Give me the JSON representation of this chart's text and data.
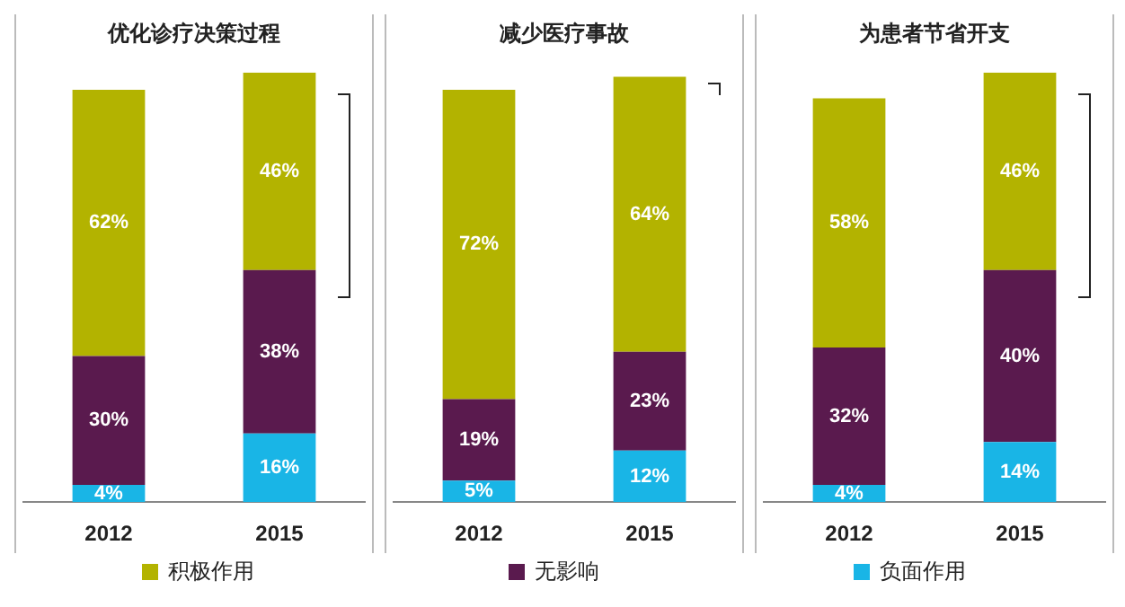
{
  "chart_data": [
    {
      "type": "bar",
      "title": "优化诊疗决策过程",
      "categories": [
        "2012",
        "2015"
      ],
      "stacked": true,
      "legend": "bottom",
      "series": [
        {
          "name": "负面作用",
          "color": "#19b5e6",
          "values": [
            4,
            16
          ],
          "value_labels": [
            "4%",
            "16%"
          ]
        },
        {
          "name": "无影响",
          "color": "#5a1a4e",
          "values": [
            30,
            38
          ],
          "value_labels": [
            "30%",
            "38%"
          ]
        },
        {
          "name": "积极作用",
          "color": "#b3b300",
          "values": [
            62,
            46
          ],
          "value_labels": [
            "62%",
            "46%"
          ]
        }
      ]
    },
    {
      "type": "bar",
      "title": "减少医疗事故",
      "categories": [
        "2012",
        "2015"
      ],
      "stacked": true,
      "series": [
        {
          "color": "#19b5e6",
          "values": [
            5,
            12
          ],
          "value_labels": [
            "5%",
            "12%"
          ]
        },
        {
          "color": "#5a1a4e",
          "values": [
            19,
            23
          ],
          "value_labels": [
            "19%",
            "23%"
          ]
        },
        {
          "color": "#b3b300",
          "values": [
            72,
            64
          ],
          "value_labels": [
            "72%",
            "64%"
          ]
        }
      ]
    },
    {
      "type": "bar",
      "title": "为患者节省开支",
      "categories": [
        "2012",
        "2015"
      ],
      "stacked": true,
      "series": [
        {
          "color": "#19b5e6",
          "values": [
            4,
            14
          ],
          "value_labels": [
            "4%",
            "14%"
          ]
        },
        {
          "color": "#5a1a4e",
          "values": [
            32,
            40
          ],
          "value_labels": [
            "32%",
            "40%"
          ]
        },
        {
          "color": "#b3b300",
          "values": [
            58,
            46
          ],
          "value_labels": [
            "58%",
            "46%"
          ]
        }
      ]
    }
  ]
}
